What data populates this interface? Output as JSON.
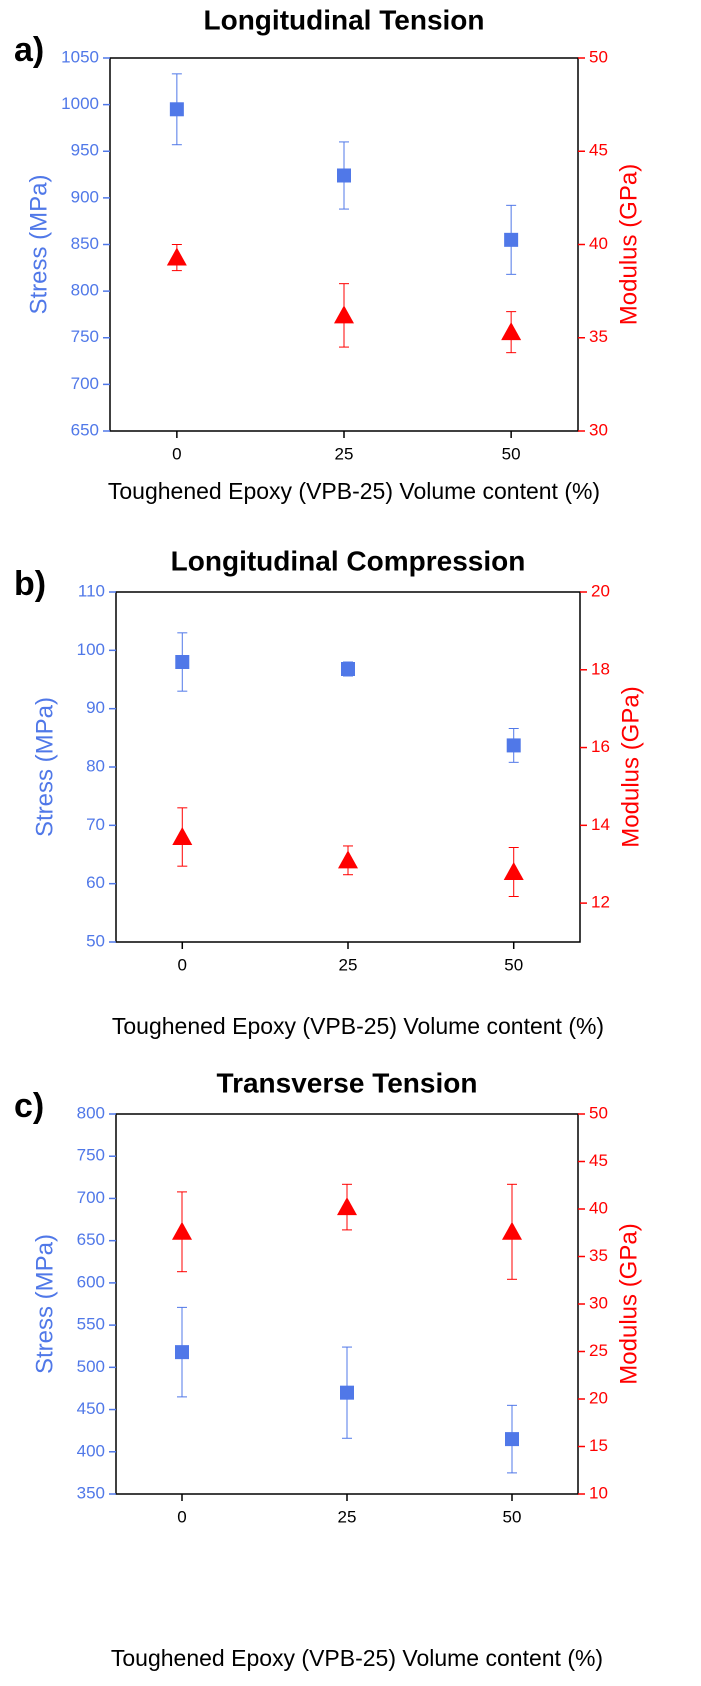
{
  "chart_data": [
    {
      "type": "scatter",
      "label": "a)",
      "title": "Longitudinal Tension",
      "xlabel": "Toughened Epoxy (VPB-25) Volume content (%)",
      "ylabel": "Stress (MPa)",
      "y2label": "Modulus (GPa)",
      "x": [
        0,
        25,
        50
      ],
      "xlim": [
        -10,
        60
      ],
      "xticks": [
        0,
        25,
        50
      ],
      "ylim": [
        650,
        1050
      ],
      "yticks": [
        650,
        700,
        750,
        800,
        850,
        900,
        950,
        1000,
        1050
      ],
      "y2lim": [
        30,
        50
      ],
      "y2ticks": [
        30,
        35,
        40,
        45,
        50
      ],
      "series": [
        {
          "color": "#5078e8",
          "marker": "square",
          "values": [
            995,
            924,
            855
          ],
          "errors": [
            38,
            36,
            37
          ]
        },
        {
          "color": "#ff0000",
          "marker": "triangle",
          "axis": "y2",
          "values": [
            39.3,
            36.2,
            35.3
          ],
          "errors": [
            0.7,
            1.7,
            1.1
          ]
        }
      ]
    },
    {
      "type": "scatter",
      "label": "b)",
      "title": "Longitudinal Compression",
      "xlabel": "Toughened Epoxy (VPB-25) Volume content (%)",
      "ylabel": "Stress (MPa)",
      "y2label": "Modulus (GPa)",
      "x": [
        0,
        25,
        50
      ],
      "xlim": [
        -10,
        60
      ],
      "xticks": [
        0,
        25,
        50
      ],
      "ylim": [
        50,
        110
      ],
      "yticks": [
        50,
        60,
        70,
        80,
        90,
        100,
        110
      ],
      "y2lim": [
        11,
        20
      ],
      "y2ticks": [
        12,
        14,
        16,
        18,
        20
      ],
      "series": [
        {
          "color": "#5078e8",
          "marker": "square",
          "values": [
            98,
            96.8,
            83.7
          ],
          "errors": [
            5,
            1.2,
            2.9
          ]
        },
        {
          "color": "#ff0000",
          "marker": "triangle",
          "axis": "y2",
          "values": [
            13.7,
            13.1,
            12.8
          ],
          "errors": [
            0.75,
            0.37,
            0.63
          ]
        }
      ]
    },
    {
      "type": "scatter",
      "label": "c)",
      "title": "Transverse Tension",
      "xlabel": "Toughened Epoxy (VPB-25) Volume content (%)",
      "ylabel": "Stress (MPa)",
      "y2label": "Modulus (GPa)",
      "x": [
        0,
        25,
        50
      ],
      "xlim": [
        -10,
        60
      ],
      "xticks": [
        0,
        25,
        50
      ],
      "ylim": [
        350,
        800
      ],
      "yticks": [
        350,
        400,
        450,
        500,
        550,
        600,
        650,
        700,
        750,
        800
      ],
      "y2lim": [
        10,
        50
      ],
      "y2ticks": [
        10,
        15,
        20,
        25,
        30,
        35,
        40,
        45,
        50
      ],
      "series": [
        {
          "color": "#5078e8",
          "marker": "square",
          "values": [
            518,
            470,
            415
          ],
          "errors": [
            53,
            54,
            40
          ]
        },
        {
          "color": "#ff0000",
          "marker": "triangle",
          "axis": "y2",
          "values": [
            37.6,
            40.2,
            37.6
          ],
          "errors": [
            4.2,
            2.4,
            5
          ]
        }
      ]
    }
  ]
}
